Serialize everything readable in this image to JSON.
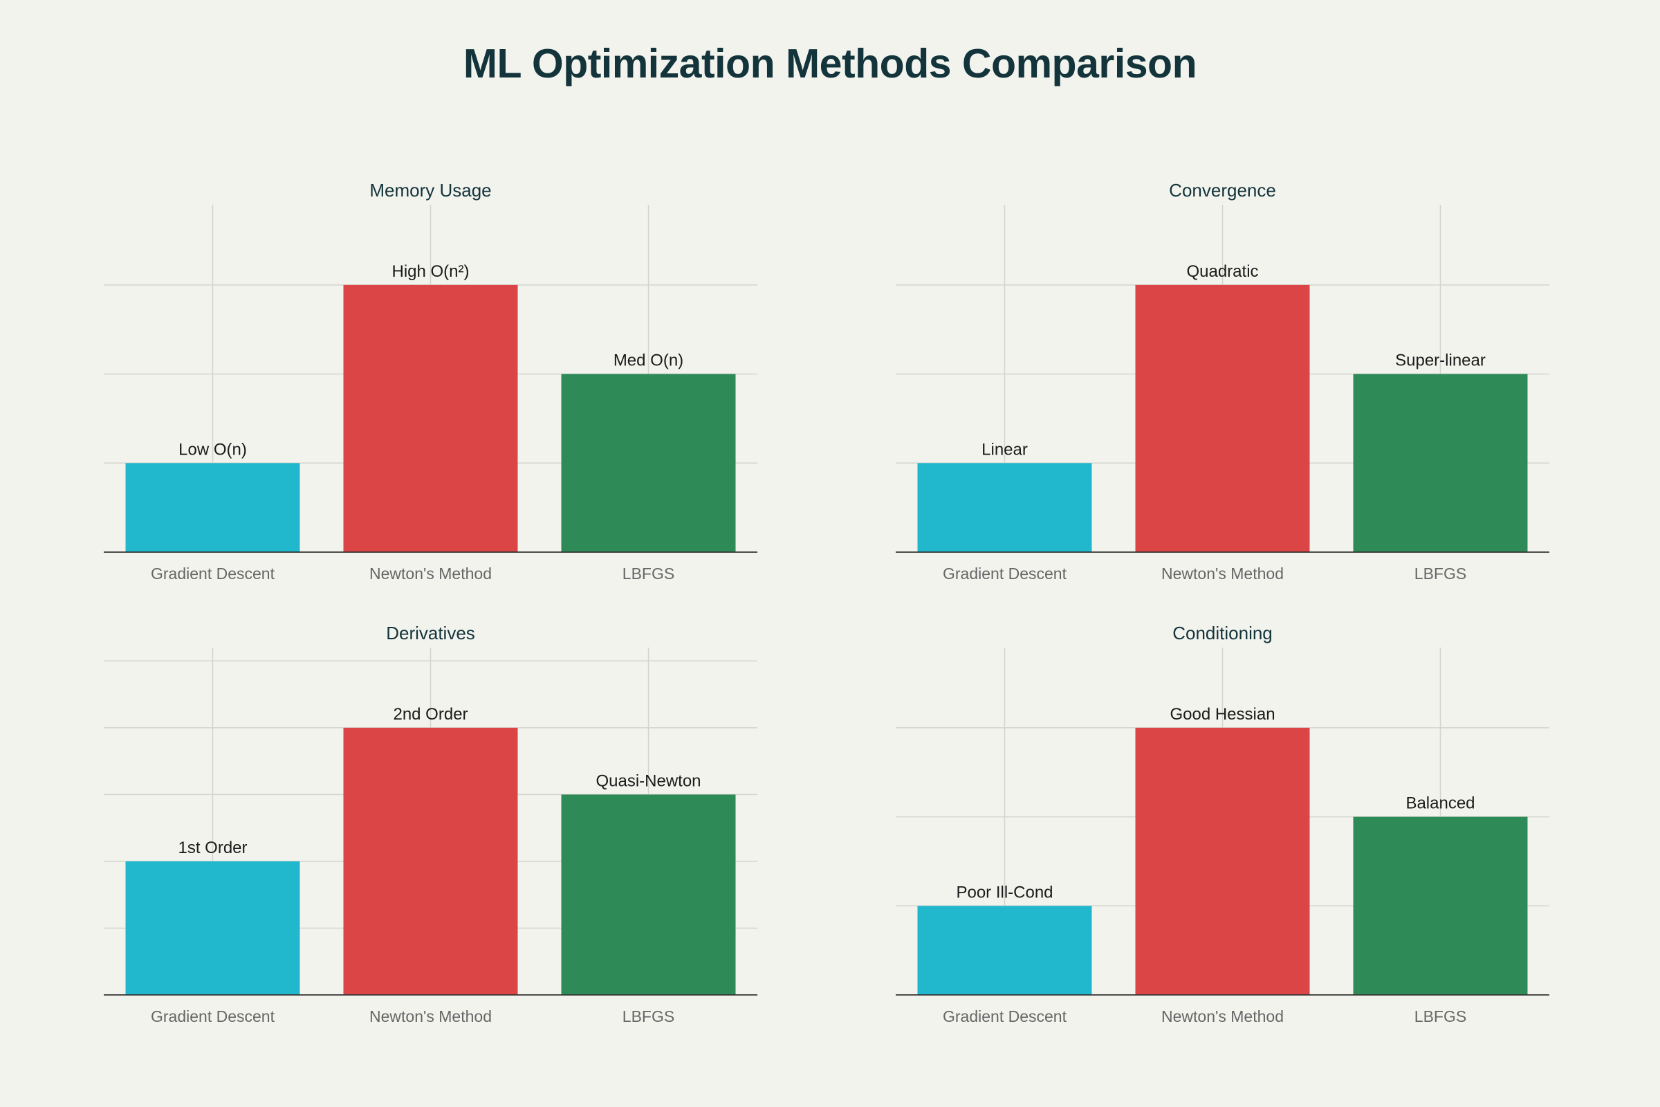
{
  "title": "ML Optimization Methods Comparison",
  "colors": {
    "background": "#f3f3ee",
    "title": "#13343b",
    "bars": [
      "#21b8cd",
      "#db4545",
      "#2e8b57"
    ]
  },
  "chart_data": [
    {
      "type": "bar",
      "title": "Memory Usage",
      "categories": [
        "Gradient Descent",
        "Newton's Method",
        "LBFGS"
      ],
      "values": [
        1,
        3,
        2
      ],
      "labels": [
        "Low O(n)",
        "High O(n²)",
        "Med O(n)"
      ],
      "ylim": [
        0,
        3.9
      ],
      "grid": true
    },
    {
      "type": "bar",
      "title": "Convergence",
      "categories": [
        "Gradient Descent",
        "Newton's Method",
        "LBFGS"
      ],
      "values": [
        1,
        3,
        2
      ],
      "labels": [
        "Linear",
        "Quadratic",
        "Super-linear"
      ],
      "ylim": [
        0,
        3.9
      ],
      "grid": true
    },
    {
      "type": "bar",
      "title": "Derivatives",
      "categories": [
        "Gradient Descent",
        "Newton's Method",
        "LBFGS"
      ],
      "values": [
        2,
        4,
        3
      ],
      "labels": [
        "1st Order",
        "2nd Order",
        "Quasi-Newton"
      ],
      "ylim": [
        0,
        5.2
      ],
      "grid": true
    },
    {
      "type": "bar",
      "title": "Conditioning",
      "categories": [
        "Gradient Descent",
        "Newton's Method",
        "LBFGS"
      ],
      "values": [
        1,
        3,
        2
      ],
      "labels": [
        "Poor Ill-Cond",
        "Good Hessian",
        "Balanced"
      ],
      "ylim": [
        0,
        3.9
      ],
      "grid": true
    }
  ]
}
